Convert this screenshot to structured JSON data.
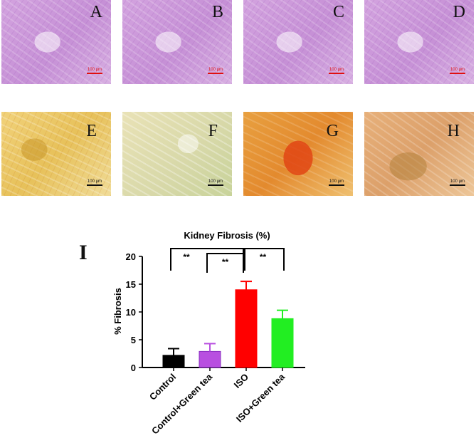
{
  "panels": [
    {
      "letter": "A",
      "scale": "100 μm",
      "stain": "he",
      "scale_color": "#e01010"
    },
    {
      "letter": "B",
      "scale": "100 μm",
      "stain": "he",
      "scale_color": "#e01010"
    },
    {
      "letter": "C",
      "scale": "100 μm",
      "stain": "he",
      "scale_color": "#e01010"
    },
    {
      "letter": "D",
      "scale": "100 μm",
      "stain": "he",
      "scale_color": "#e01010"
    },
    {
      "letter": "E",
      "scale": "100 μm",
      "stain": "ps",
      "scale_color": "#111111"
    },
    {
      "letter": "F",
      "scale": "100 μm",
      "stain": "ps-f",
      "scale_color": "#111111"
    },
    {
      "letter": "G",
      "scale": "100 μm",
      "stain": "ps-g",
      "scale_color": "#111111"
    },
    {
      "letter": "H",
      "scale": "100 μm",
      "stain": "ps-h",
      "scale_color": "#111111"
    }
  ],
  "panel_i_letter": "I",
  "chart_data": {
    "type": "bar",
    "title": "Kidney Fibrosis (%)",
    "xlabel": "",
    "ylabel": "% Fibrosis",
    "ylim": [
      0,
      20
    ],
    "yticks": [
      "0",
      "5",
      "10",
      "15",
      "20"
    ],
    "categories": [
      "Control",
      "Control+Green tea",
      "ISO",
      "ISO+Green tea"
    ],
    "values": [
      2.2,
      2.9,
      14.0,
      8.8
    ],
    "errors": [
      1.2,
      1.4,
      1.5,
      1.5
    ],
    "colors": [
      "#000000",
      "#b84fe0",
      "#ff0000",
      "#22ee22"
    ],
    "significance": [
      {
        "from": "Control",
        "to": "ISO",
        "label": "**"
      },
      {
        "from": "Control+Green tea",
        "to": "ISO",
        "label": "**"
      },
      {
        "from": "ISO",
        "to": "ISO+Green tea",
        "label": "**"
      }
    ]
  }
}
